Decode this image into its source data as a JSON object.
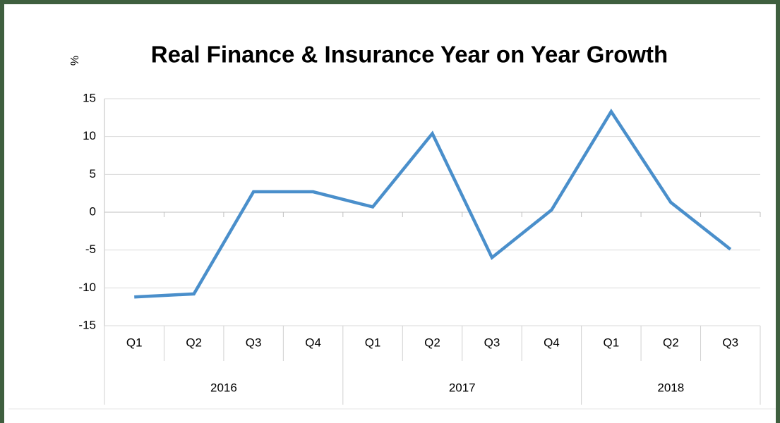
{
  "chart_data": {
    "type": "line",
    "title": "Real Finance & Insurance Year on Year Growth",
    "ylabel": "%",
    "categories": [
      "Q1",
      "Q2",
      "Q3",
      "Q4",
      "Q1",
      "Q2",
      "Q3",
      "Q4",
      "Q1",
      "Q2",
      "Q3"
    ],
    "category_groups": [
      {
        "label": "2016",
        "count": 4
      },
      {
        "label": "2017",
        "count": 4
      },
      {
        "label": "2018",
        "count": 3
      }
    ],
    "series": [
      {
        "name": "Real Finance & Insurance",
        "color": "#4a8fcb",
        "values": [
          -11.2,
          -10.8,
          2.7,
          2.7,
          0.7,
          10.4,
          -6.0,
          0.3,
          13.3,
          1.3,
          -4.9
        ]
      }
    ],
    "ylim": [
      -15,
      15
    ],
    "yticks": [
      -15,
      -10,
      -5,
      0,
      5,
      10,
      15
    ],
    "grid": true
  }
}
